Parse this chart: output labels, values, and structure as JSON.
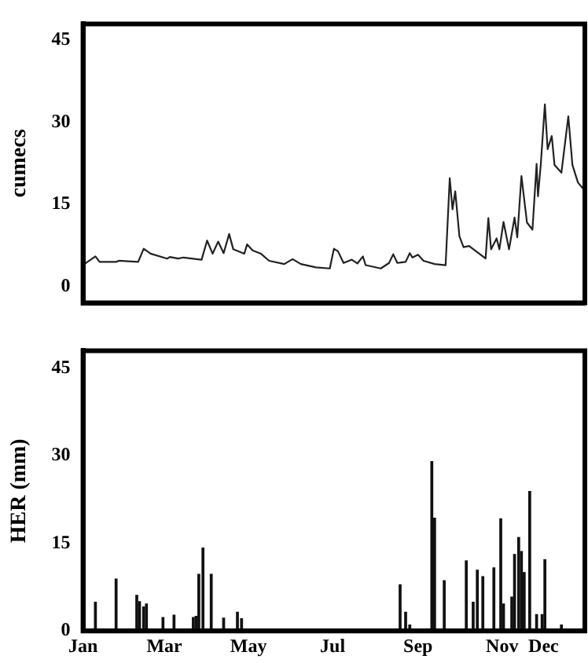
{
  "chart_data": [
    {
      "type": "line",
      "ylabel": "cumecs",
      "x": [
        "--01-02",
        "--01-10",
        "--01-13",
        "--01-25",
        "--01-27",
        "--02-10",
        "--02-14",
        "--02-19",
        "--03-03",
        "--03-05",
        "--03-11",
        "--03-15",
        "--03-28",
        "--04-01",
        "--04-05",
        "--04-09",
        "--04-13",
        "--04-17",
        "--04-20",
        "--04-28",
        "--04-30",
        "--05-04",
        "--05-10",
        "--05-16",
        "--05-27",
        "--06-02",
        "--06-08",
        "--06-19",
        "--06-29",
        "--07-02",
        "--07-05",
        "--07-09",
        "--07-15",
        "--07-19",
        "--07-23",
        "--07-25",
        "--08-05",
        "--08-11",
        "--08-14",
        "--08-17",
        "--08-23",
        "--08-26",
        "--08-28",
        "--09-01",
        "--09-05",
        "--09-13",
        "--09-21",
        "--09-24",
        "--09-26",
        "--09-28",
        "--10-01",
        "--10-04",
        "--10-08",
        "--10-18",
        "--10-20",
        "--10-22",
        "--10-24",
        "--10-28",
        "--10-30",
        "--11-02",
        "--11-06",
        "--11-10",
        "--11-12",
        "--11-15",
        "--11-19",
        "--11-23",
        "--11-26",
        "--11-27",
        "--11-29",
        "--12-02",
        "--12-04",
        "--12-07",
        "--12-09",
        "--12-14",
        "--12-19",
        "--12-22",
        "--12-26",
        "--12-30"
      ],
      "series": [
        {
          "color": "#222222",
          "values": [
            4.1,
            5.5,
            4.5,
            4.5,
            4.7,
            4.5,
            6.9,
            6.0,
            5.1,
            5.4,
            5.1,
            5.3,
            4.9,
            8.4,
            6.0,
            8.2,
            6.1,
            9.6,
            6.8,
            6.0,
            7.7,
            6.6,
            6.0,
            4.7,
            4.1,
            5.0,
            4.1,
            3.5,
            3.3,
            6.9,
            6.4,
            4.3,
            4.9,
            4.2,
            5.5,
            3.9,
            3.3,
            4.3,
            5.9,
            4.3,
            4.5,
            6.1,
            5.3,
            5.8,
            4.7,
            4.1,
            3.9,
            19.8,
            14.1,
            17.4,
            9.2,
            7.2,
            7.4,
            5.5,
            5.1,
            12.5,
            6.8,
            8.8,
            6.8,
            11.8,
            6.8,
            12.6,
            9.0,
            20.2,
            11.7,
            10.4,
            22.4,
            16.5,
            22.2,
            33.3,
            25.1,
            27.5,
            22.2,
            20.8,
            31.1,
            22.2,
            19.0,
            17.8
          ]
        }
      ],
      "xlim": [
        "--01-01",
        "--12-31"
      ],
      "ylim": [
        -3,
        48
      ],
      "yticks": [
        0,
        15,
        30,
        45
      ],
      "tick_labels": "y",
      "marker": "none",
      "line_style": "solid"
    },
    {
      "type": "bar",
      "ylabel": "HER (mm)",
      "x": [
        "--01-10",
        "--01-25",
        "--02-09",
        "--02-11",
        "--02-14",
        "--02-16",
        "--02-28",
        "--03-08",
        "--03-22",
        "--03-24",
        "--03-26",
        "--03-29",
        "--04-04",
        "--04-13",
        "--04-23",
        "--04-26",
        "--08-19",
        "--08-23",
        "--08-26",
        "--09-11",
        "--09-13",
        "--09-20",
        "--10-06",
        "--10-11",
        "--10-14",
        "--10-18",
        "--10-26",
        "--10-31",
        "--11-02",
        "--11-06",
        "--11-08",
        "--11-10",
        "--11-13",
        "--11-15",
        "--11-17",
        "--11-21",
        "--11-26",
        "--11-30",
        "--12-02",
        "--12-14"
      ],
      "series": [
        {
          "color": "#111111",
          "values": [
            4.9,
            8.9,
            6.1,
            5.0,
            4.1,
            4.6,
            2.3,
            2.7,
            2.3,
            2.5,
            9.7,
            14.2,
            9.7,
            2.2,
            3.2,
            2.1,
            7.9,
            3.2,
            1.0,
            29.0,
            19.3,
            8.6,
            12.0,
            4.9,
            10.4,
            9.3,
            10.8,
            19.2,
            4.6,
            null,
            5.8,
            13.1,
            16.0,
            13.6,
            10.0,
            23.9,
            2.8,
            2.8,
            12.2,
            1.0
          ]
        }
      ],
      "xlim": [
        "--01-01",
        "--12-31"
      ],
      "xticks": [
        {
          "value": "--01-01",
          "label": "Jan"
        },
        {
          "value": "--03-01",
          "label": "Mar"
        },
        {
          "value": "--05-01",
          "label": "May"
        },
        {
          "value": "--07-01",
          "label": "Jul"
        },
        {
          "value": "--09-01",
          "label": "Sep"
        },
        {
          "value": "--11-01",
          "label": "Nov"
        },
        {
          "value": "--12-01",
          "label": "Dec"
        }
      ],
      "ylim": [
        0,
        48
      ],
      "yticks": [
        0,
        15,
        30,
        45
      ]
    }
  ]
}
